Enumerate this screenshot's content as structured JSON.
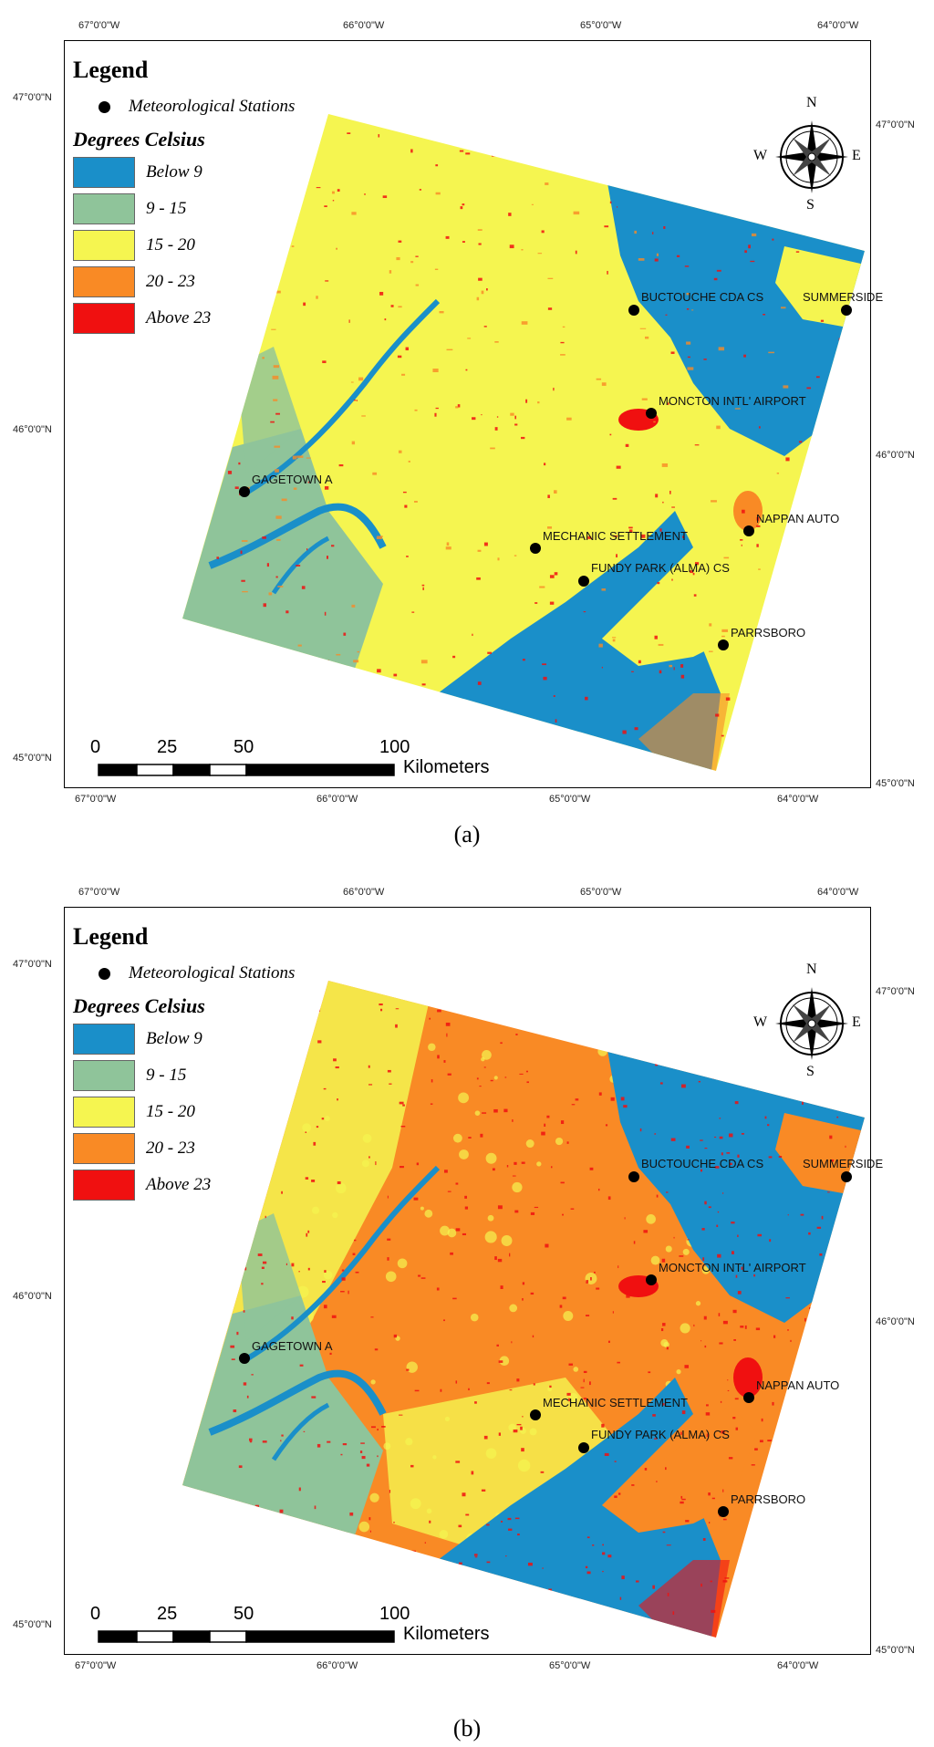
{
  "panels": [
    {
      "id": "a",
      "label": "(a)",
      "legend": {
        "title": "Legend",
        "station_label": "Meteorological Stations",
        "subtitle": "Degrees Celsius",
        "items": [
          {
            "label": "Below 9",
            "color": "#1a8fc9"
          },
          {
            "label": "9 - 15",
            "color": "#8fc49a"
          },
          {
            "label": "15 - 20",
            "color": "#f5f550"
          },
          {
            "label": "20 - 23",
            "color": "#f98a25"
          },
          {
            "label": "Above 23",
            "color": "#f01010"
          }
        ]
      },
      "dominant_class": "15 - 20",
      "stations": [
        "BUCTOUCHE CDA CS",
        "SUMMERSIDE",
        "MONCTON INTL' AIRPORT",
        "GAGETOWN A",
        "NAPPAN AUTO",
        "MECHANIC SETTLEMENT",
        "FUNDY PARK (ALMA) CS",
        "PARRSBORO"
      ],
      "top_ticks": [
        "67°0'0\"W",
        "66°0'0\"W",
        "65°0'0\"W",
        "64°0'0\"W"
      ],
      "bottom_ticks": [
        "67°0'0\"W",
        "66°0'0\"W",
        "65°0'0\"W",
        "64°0'0\"W"
      ],
      "left_ticks": [
        "47°0'0\"N",
        "46°0'0\"N",
        "45°0'0\"N"
      ],
      "right_ticks": [
        "47°0'0\"N",
        "46°0'0\"N",
        "45°0'0\"N"
      ],
      "scale": {
        "labels": [
          "0",
          "25",
          "50",
          "100"
        ],
        "unit": "Kilometers"
      },
      "compass": {
        "n": "N",
        "s": "S",
        "e": "E",
        "w": "W"
      }
    },
    {
      "id": "b",
      "label": "(b)",
      "legend": {
        "title": "Legend",
        "station_label": "Meteorological Stations",
        "subtitle": "Degrees Celsius",
        "items": [
          {
            "label": "Below 9",
            "color": "#1a8fc9"
          },
          {
            "label": "9 - 15",
            "color": "#8fc49a"
          },
          {
            "label": "15 - 20",
            "color": "#f5f550"
          },
          {
            "label": "20 - 23",
            "color": "#f98a25"
          },
          {
            "label": "Above 23",
            "color": "#f01010"
          }
        ]
      },
      "dominant_class": "20 - 23",
      "stations": [
        "BUCTOUCHE CDA CS",
        "SUMMERSIDE",
        "MONCTON INTL' AIRPORT",
        "GAGETOWN A",
        "NAPPAN AUTO",
        "MECHANIC SETTLEMENT",
        "FUNDY PARK (ALMA) CS",
        "PARRSBORO"
      ],
      "top_ticks": [
        "67°0'0\"W",
        "66°0'0\"W",
        "65°0'0\"W",
        "64°0'0\"W"
      ],
      "bottom_ticks": [
        "67°0'0\"W",
        "66°0'0\"W",
        "65°0'0\"W",
        "64°0'0\"W"
      ],
      "left_ticks": [
        "47°0'0\"N",
        "46°0'0\"N",
        "45°0'0\"N"
      ],
      "right_ticks": [
        "47°0'0\"N",
        "46°0'0\"N",
        "45°0'0\"N"
      ],
      "scale": {
        "labels": [
          "0",
          "25",
          "50",
          "100"
        ],
        "unit": "Kilometers"
      },
      "compass": {
        "n": "N",
        "s": "S",
        "e": "E",
        "w": "W"
      }
    }
  ]
}
